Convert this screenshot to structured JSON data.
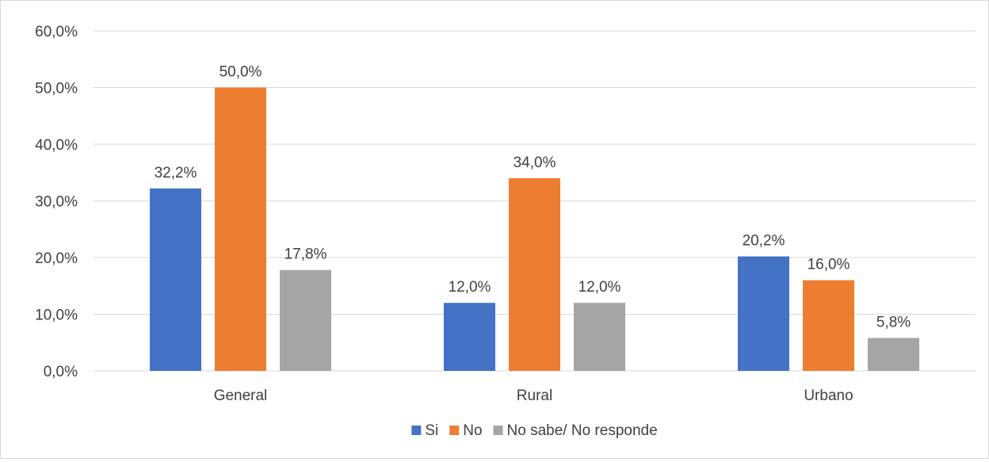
{
  "chart_data": {
    "type": "bar",
    "categories": [
      "General",
      "Rural",
      "Urbano"
    ],
    "series": [
      {
        "name": "Si",
        "values": [
          32.2,
          12.0,
          20.2
        ],
        "labels": [
          "32,2%",
          "12,0%",
          "20,2%"
        ],
        "color": "#4472C4"
      },
      {
        "name": "No",
        "values": [
          50.0,
          34.0,
          16.0
        ],
        "labels": [
          "50,0%",
          "34,0%",
          "16,0%"
        ],
        "color": "#ED7D31"
      },
      {
        "name": "No sabe/ No responde",
        "values": [
          17.8,
          12.0,
          5.8
        ],
        "labels": [
          "17,8%",
          "12,0%",
          "5,8%"
        ],
        "color": "#A5A5A5"
      }
    ],
    "yticks": [
      "0,0%",
      "10,0%",
      "20,0%",
      "30,0%",
      "40,0%",
      "50,0%",
      "60,0%"
    ],
    "ylim": [
      0,
      60
    ],
    "grid": true,
    "gridColor": "#d9d9d9",
    "legend_position": "bottom",
    "title": "",
    "xlabel": "",
    "ylabel": ""
  }
}
